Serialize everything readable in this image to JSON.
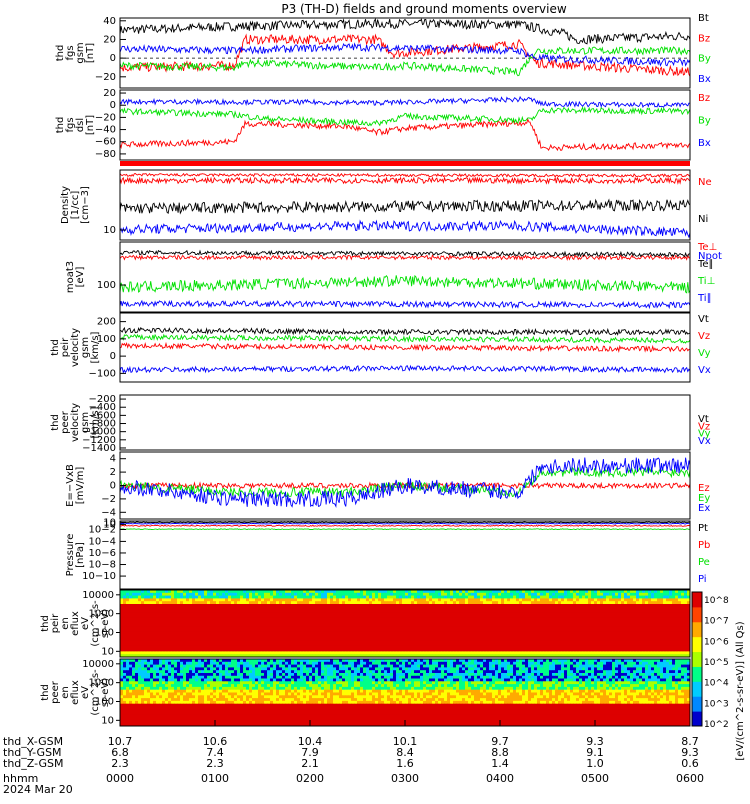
{
  "title": "P3 (TH-D) fields and ground moments overview",
  "date": "2024 Mar 20",
  "time_axis": {
    "hhmm_label": "hhmm",
    "hhmm": [
      "0000",
      "0100",
      "0200",
      "0300",
      "0400",
      "0500",
      "0600"
    ],
    "rows": [
      {
        "label": "thd_X-GSM",
        "values": [
          "10.7",
          "10.6",
          "10.4",
          "10.1",
          "9.7",
          "9.3",
          "8.7"
        ]
      },
      {
        "label": "thd_Y-GSM",
        "values": [
          "6.8",
          "7.4",
          "7.9",
          "8.4",
          "8.8",
          "9.1",
          "9.3"
        ]
      },
      {
        "label": "thd_Z-GSM",
        "values": [
          "2.3",
          "2.3",
          "2.1",
          "1.6",
          "1.4",
          "1.0",
          "0.6"
        ]
      }
    ]
  },
  "colors": {
    "black": "#000000",
    "red": "#ff0000",
    "green": "#00e000",
    "blue": "#0000ff"
  },
  "flag_bar": {
    "color": "#ff0000"
  },
  "colorbar": {
    "label": "[eV/(cm^2-s-sr-eV)]  (All Qs)",
    "tick_labels": [
      "10^8",
      "10^7",
      "10^6",
      "10^5",
      "10^4",
      "10^3",
      "10^2"
    ],
    "colors": [
      "#ffffff",
      "#0000cc",
      "#0088ff",
      "#00ccff",
      "#00ff88",
      "#aaff00",
      "#ffff00",
      "#ffaa00",
      "#ff4400",
      "#dd0000"
    ]
  },
  "chart_data": [
    {
      "type": "line",
      "ylabel": [
        "thd",
        "fgs",
        "gsm",
        "[nT]"
      ],
      "ylim": [
        -32,
        43
      ],
      "yticks": [
        {
          "v": 40,
          "t": "40"
        },
        {
          "v": 20,
          "t": "20"
        },
        {
          "v": 0,
          "t": "0"
        },
        {
          "v": -20,
          "t": "−20"
        }
      ],
      "dashed_zero": true,
      "series": [
        {
          "name": "Bt",
          "color": "black",
          "amp": 5,
          "profile": [
            [
              0,
              30
            ],
            [
              0.2,
              34
            ],
            [
              0.45,
              37
            ],
            [
              0.7,
              36
            ],
            [
              0.78,
              26
            ],
            [
              0.8,
              20
            ],
            [
              1,
              24
            ]
          ]
        },
        {
          "name": "Bz",
          "color": "red",
          "amp": 5,
          "profile": [
            [
              0,
              -10
            ],
            [
              0.2,
              -8
            ],
            [
              0.22,
              20
            ],
            [
              0.45,
              20
            ],
            [
              0.48,
              5
            ],
            [
              0.7,
              15
            ],
            [
              0.73,
              -5
            ],
            [
              1,
              -15
            ]
          ]
        },
        {
          "name": "By",
          "color": "green",
          "amp": 4,
          "profile": [
            [
              0,
              -8
            ],
            [
              0.2,
              -10
            ],
            [
              0.22,
              -5
            ],
            [
              0.45,
              -10
            ],
            [
              0.5,
              -8
            ],
            [
              0.7,
              -15
            ],
            [
              0.73,
              8
            ],
            [
              1,
              8
            ]
          ]
        },
        {
          "name": "Bx",
          "color": "blue",
          "amp": 4,
          "profile": [
            [
              0,
              10
            ],
            [
              0.2,
              8
            ],
            [
              0.4,
              12
            ],
            [
              0.7,
              8
            ],
            [
              0.73,
              0
            ],
            [
              1,
              -5
            ]
          ]
        }
      ]
    },
    {
      "type": "line",
      "ylabel": [
        "thd",
        "fgs",
        "dsl",
        "[nT]"
      ],
      "ylim": [
        -90,
        25
      ],
      "yticks": [
        {
          "v": 20,
          "t": "20"
        },
        {
          "v": 0,
          "t": "0"
        },
        {
          "v": -20,
          "t": "−20"
        },
        {
          "v": -40,
          "t": "−40"
        },
        {
          "v": -60,
          "t": "−60"
        },
        {
          "v": -80,
          "t": "−80"
        }
      ],
      "series": [
        {
          "name": "Bz",
          "color": "red",
          "amp": 5,
          "profile": [
            [
              0,
              -65
            ],
            [
              0.2,
              -60
            ],
            [
              0.22,
              -30
            ],
            [
              0.4,
              -35
            ],
            [
              0.45,
              -45
            ],
            [
              0.5,
              -38
            ],
            [
              0.72,
              -28
            ],
            [
              0.74,
              -70
            ],
            [
              1,
              -65
            ]
          ]
        },
        {
          "name": "By",
          "color": "green",
          "amp": 5,
          "profile": [
            [
              0,
              -10
            ],
            [
              0.2,
              -15
            ],
            [
              0.25,
              -22
            ],
            [
              0.45,
              -30
            ],
            [
              0.5,
              -18
            ],
            [
              0.72,
              -25
            ],
            [
              0.74,
              -8
            ],
            [
              1,
              -10
            ]
          ]
        },
        {
          "name": "Bx",
          "color": "blue",
          "amp": 4,
          "profile": [
            [
              0,
              6
            ],
            [
              0.3,
              5
            ],
            [
              0.45,
              4
            ],
            [
              0.72,
              10
            ],
            [
              0.74,
              2
            ],
            [
              1,
              0
            ]
          ]
        }
      ]
    },
    {
      "type": "line",
      "ylabel": [
        "Density",
        "[1/cc]",
        "[cm−3]"
      ],
      "log_decades": 1.5,
      "yticks": [
        {
          "v": 10,
          "t": "10"
        }
      ],
      "series": [
        {
          "name": "Ne",
          "color": "red",
          "amp": 0.04,
          "profile": [
            [
              0,
              0.85
            ],
            [
              1,
              0.85
            ]
          ]
        },
        {
          "name": "Ni",
          "color": "black",
          "amp": 0.08,
          "profile": [
            [
              0,
              0.45
            ],
            [
              0.5,
              0.48
            ],
            [
              1,
              0.5
            ]
          ]
        },
        {
          "name": "Npot",
          "color": "blue",
          "amp": 0.07,
          "profile": [
            [
              0,
              0.15
            ],
            [
              0.4,
              0.2
            ],
            [
              0.7,
              0.2
            ],
            [
              1,
              0.1
            ]
          ]
        },
        {
          "name": "",
          "color": "red",
          "amp": 0.02,
          "profile": [
            [
              0,
              0.93
            ],
            [
              1,
              0.92
            ]
          ]
        }
      ]
    },
    {
      "type": "line",
      "ylabel": [
        "moat3",
        "[eV]"
      ],
      "yticks": [
        {
          "v": 100,
          "t": "100"
        }
      ],
      "series": [
        {
          "name": "Te⊥",
          "color": "red",
          "amp": 0.03,
          "profile": [
            [
              0,
              0.78
            ],
            [
              1,
              0.78
            ]
          ]
        },
        {
          "name": "Te∥",
          "color": "black",
          "amp": 0.03,
          "profile": [
            [
              0,
              0.85
            ],
            [
              1,
              0.82
            ]
          ]
        },
        {
          "name": "Ti⊥",
          "color": "green",
          "amp": 0.08,
          "profile": [
            [
              0,
              0.35
            ],
            [
              0.5,
              0.45
            ],
            [
              1,
              0.35
            ]
          ]
        },
        {
          "name": "Ti∥",
          "color": "blue",
          "amp": 0.04,
          "profile": [
            [
              0,
              0.12
            ],
            [
              1,
              0.1
            ]
          ]
        }
      ]
    },
    {
      "type": "line",
      "ylabel": [
        "thd",
        "peir",
        "velocity",
        "gsm",
        "[km/s]"
      ],
      "ylim": [
        -150,
        250
      ],
      "yticks": [
        {
          "v": 200,
          "t": "200"
        },
        {
          "v": 100,
          "t": "100"
        },
        {
          "v": 0,
          "t": "0"
        },
        {
          "v": -100,
          "t": "−100"
        }
      ],
      "series": [
        {
          "name": "Vt",
          "color": "black",
          "amp": 15,
          "profile": [
            [
              0,
              150
            ],
            [
              0.5,
              140
            ],
            [
              1,
              140
            ]
          ]
        },
        {
          "name": "Vz",
          "color": "red",
          "amp": 15,
          "profile": [
            [
              0,
              60
            ],
            [
              0.5,
              50
            ],
            [
              1,
              40
            ]
          ]
        },
        {
          "name": "Vy",
          "color": "green",
          "amp": 15,
          "profile": [
            [
              0,
              110
            ],
            [
              0.5,
              100
            ],
            [
              1,
              90
            ]
          ]
        },
        {
          "name": "Vx",
          "color": "blue",
          "amp": 15,
          "profile": [
            [
              0,
              -80
            ],
            [
              0.5,
              -70
            ],
            [
              1,
              -80
            ]
          ]
        }
      ]
    },
    {
      "type": "line",
      "ylabel": [
        "thd",
        "peer",
        "velocity",
        "gsm",
        "[km/s]"
      ],
      "ylim": [
        -1450,
        -100
      ],
      "yticks": [
        {
          "v": -200,
          "t": "−200"
        },
        {
          "v": -400,
          "t": "−400"
        },
        {
          "v": -600,
          "t": "−600"
        },
        {
          "v": -800,
          "t": "−800"
        },
        {
          "v": -1000,
          "t": "−1000"
        },
        {
          "v": -1200,
          "t": "−1200"
        },
        {
          "v": -1400,
          "t": "−1400"
        }
      ],
      "series": [
        {
          "name": "Vt",
          "color": "black",
          "amp": 0,
          "profile": []
        },
        {
          "name": "Vz",
          "color": "red",
          "amp": 0,
          "profile": []
        },
        {
          "name": "Vy",
          "color": "green",
          "amp": 0,
          "profile": []
        },
        {
          "name": "Vx",
          "color": "blue",
          "amp": 0,
          "profile": []
        }
      ]
    },
    {
      "type": "line",
      "ylabel": [
        "E=−VxB",
        "[mV/m]"
      ],
      "ylim": [
        -5,
        5
      ],
      "yticks": [
        {
          "v": 4,
          "t": "4"
        },
        {
          "v": 2,
          "t": "2"
        },
        {
          "v": 0,
          "t": "0"
        },
        {
          "v": -2,
          "t": "−2"
        },
        {
          "v": -4,
          "t": "−4"
        }
      ],
      "series": [
        {
          "name": "Ez",
          "color": "red",
          "amp": 0.4,
          "profile": [
            [
              0,
              0
            ],
            [
              1,
              0
            ]
          ]
        },
        {
          "name": "Ey",
          "color": "green",
          "amp": 0.7,
          "profile": [
            [
              0,
              0
            ],
            [
              0.2,
              -1
            ],
            [
              0.4,
              -1
            ],
            [
              0.5,
              0
            ],
            [
              0.7,
              -1
            ],
            [
              0.74,
              2
            ],
            [
              1,
              2
            ]
          ]
        },
        {
          "name": "Ex",
          "color": "blue",
          "amp": 1.2,
          "profile": [
            [
              0,
              0
            ],
            [
              0.2,
              -2
            ],
            [
              0.4,
              -2
            ],
            [
              0.5,
              0
            ],
            [
              0.7,
              -1
            ],
            [
              0.74,
              3
            ],
            [
              1,
              3
            ]
          ]
        }
      ]
    },
    {
      "type": "line",
      "ylabel": [
        "Pressure",
        "[nPa]"
      ],
      "yticks": [
        {
          "v": 0.98,
          "t": "10"
        },
        {
          "v": 0.95,
          "t": "10"
        },
        {
          "v": 0.875,
          "t": "10−2"
        },
        {
          "v": 0.7,
          "t": "10−4"
        },
        {
          "v": 0.53,
          "t": "10−6"
        },
        {
          "v": 0.36,
          "t": "10−8"
        },
        {
          "v": 0.19,
          "t": "10−10"
        }
      ],
      "series": [
        {
          "name": "Pt",
          "color": "black",
          "amp": 0.005,
          "profile": [
            [
              0,
              0.98
            ],
            [
              1,
              0.98
            ]
          ]
        },
        {
          "name": "Pb",
          "color": "red",
          "amp": 0.008,
          "profile": [
            [
              0,
              0.93
            ],
            [
              1,
              0.93
            ]
          ]
        },
        {
          "name": "Pe",
          "color": "green",
          "amp": 0.005,
          "profile": [
            [
              0,
              0.88
            ],
            [
              1,
              0.88
            ]
          ]
        },
        {
          "name": "Pi",
          "color": "blue",
          "amp": 0.004,
          "profile": [
            [
              0,
              0.96
            ],
            [
              1,
              0.96
            ]
          ]
        }
      ]
    },
    {
      "type": "heatmap",
      "ylabel": [
        "thd",
        "peir",
        "en",
        "eflux",
        "eV",
        "(cm^2-s-",
        "sr-eV)"
      ],
      "yticks": [
        {
          "v": 10000,
          "t": "10000"
        },
        {
          "v": 1000,
          "t": "1000"
        },
        {
          "v": 100,
          "t": "100"
        },
        {
          "v": 10,
          "t": "10"
        }
      ],
      "ylog": [
        5,
        18000
      ]
    },
    {
      "type": "heatmap",
      "ylabel": [
        "thd",
        "peer",
        "en",
        "eflux",
        "eV",
        "(cm^2-s-",
        "sr-eV)"
      ],
      "yticks": [
        {
          "v": 10000,
          "t": "10000"
        },
        {
          "v": 1000,
          "t": "1000"
        },
        {
          "v": 100,
          "t": "100"
        },
        {
          "v": 10,
          "t": "10"
        }
      ],
      "ylog": [
        5,
        18000
      ]
    }
  ]
}
